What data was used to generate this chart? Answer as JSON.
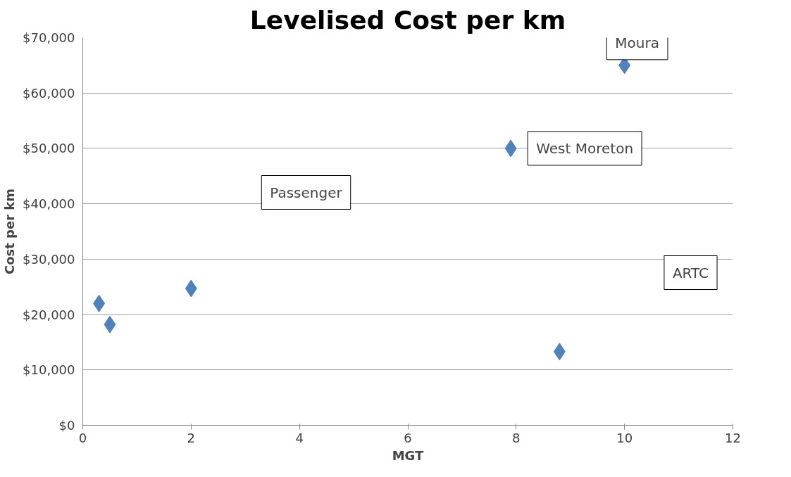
{
  "chart_data": {
    "type": "scatter",
    "title": "Levelised Cost per km",
    "xlabel": "MGT",
    "ylabel": "Cost per km",
    "x": [
      0.3,
      0.5,
      2,
      7.9,
      8.8,
      10
    ],
    "values": [
      22000,
      18200,
      24700,
      50000,
      13300,
      65000
    ],
    "color": "#4f81bd",
    "marker": "diamond",
    "xlim": [
      0,
      12
    ],
    "xticks": [
      0,
      2,
      4,
      6,
      8,
      10,
      12
    ],
    "ylim": [
      0,
      70000
    ],
    "yticks": [
      {
        "value": 0,
        "label": "$0"
      },
      {
        "value": 10000,
        "label": "$10,000"
      },
      {
        "value": 20000,
        "label": "$20,000"
      },
      {
        "value": 30000,
        "label": "$30,000"
      },
      {
        "value": 40000,
        "label": "$40,000"
      },
      {
        "value": 50000,
        "label": "$50,000"
      },
      {
        "value": 60000,
        "label": "$60,000"
      },
      {
        "value": 70000,
        "label": "$70,000"
      }
    ],
    "grid": "y",
    "annotations": [
      "Passenger",
      {
        "text": "West Moreton",
        "x": 7.9,
        "y": 50000
      },
      "ARTC",
      {
        "text": "Moura",
        "x": 10,
        "y": 65000
      }
    ]
  }
}
